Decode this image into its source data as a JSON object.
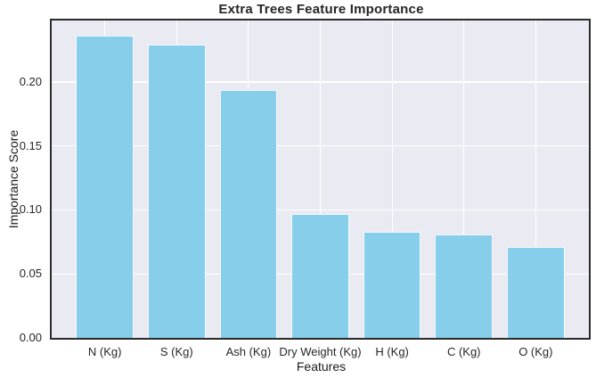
{
  "chart_data": {
    "type": "bar",
    "title": "Extra Trees Feature Importance",
    "xlabel": "Features",
    "ylabel": "Importance Score",
    "categories": [
      "N (Kg)",
      "S (Kg)",
      "Ash (Kg)",
      "Dry Weight (Kg)",
      "H (Kg)",
      "C (Kg)",
      "O (Kg)"
    ],
    "values": [
      0.236,
      0.229,
      0.194,
      0.097,
      0.083,
      0.081,
      0.071
    ],
    "ylim": [
      0,
      0.248
    ],
    "yticks": [
      0,
      0.05,
      0.1,
      0.15,
      0.2
    ],
    "ytick_labels": [
      "0.00",
      "0.05",
      "0.10",
      "0.15",
      "0.20"
    ],
    "grid": "on",
    "legend": "none",
    "bar_width_fraction": 0.8,
    "x_margin_fraction": 0.34,
    "colors": {
      "bar_fill": "#87ceeb",
      "bar_edge": "#ffffff",
      "plot_background": "#eaeaf2",
      "figure_background": "#ffffff",
      "gridline": "#ffffff",
      "axes_border": "#2b2b2b",
      "text": "#262626"
    }
  }
}
